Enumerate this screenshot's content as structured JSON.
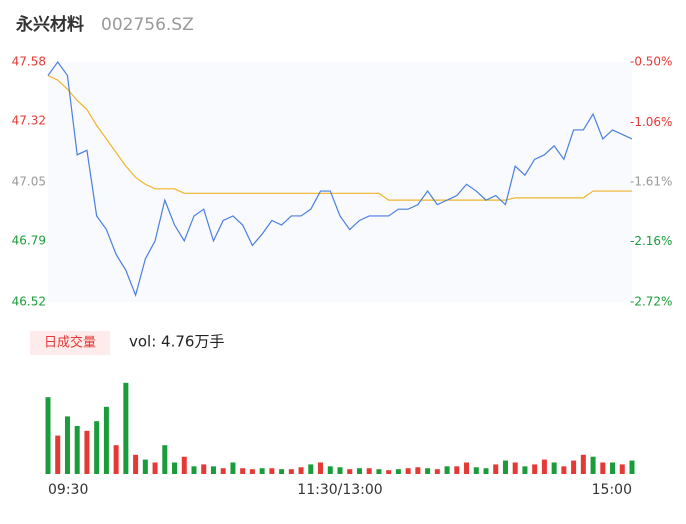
{
  "chart_data": [
    {
      "type": "line",
      "title": "永兴材料",
      "subtitle": "002756.SZ",
      "ylim": [
        46.52,
        47.58
      ],
      "yticks": [
        47.58,
        47.32,
        47.05,
        46.79,
        46.52
      ],
      "ytick_colors": [
        "#e53935",
        "#e53935",
        "#999999",
        "#1a9c3a",
        "#1a9c3a"
      ],
      "y2lim": [
        -2.72,
        -0.5
      ],
      "y2ticks": [
        {
          "value": -0.5,
          "label": "-0.50%"
        },
        {
          "value": -1.06,
          "label": "-1.06%"
        },
        {
          "value": -1.61,
          "label": "-1.61%"
        },
        {
          "value": -2.16,
          "label": "-2.16%"
        },
        {
          "value": -2.72,
          "label": "-2.72%"
        }
      ],
      "series": [
        {
          "color": "#4a7fe0",
          "values": [
            47.52,
            47.58,
            47.52,
            47.17,
            47.19,
            46.9,
            46.84,
            46.73,
            46.66,
            46.55,
            46.71,
            46.79,
            46.97,
            46.86,
            46.79,
            46.9,
            46.93,
            46.79,
            46.88,
            46.9,
            46.86,
            46.77,
            46.82,
            46.88,
            46.86,
            46.9,
            46.9,
            46.93,
            47.01,
            47.01,
            46.9,
            46.84,
            46.88,
            46.9,
            46.9,
            46.9,
            46.93,
            46.93,
            46.95,
            47.01,
            46.95,
            46.97,
            46.99,
            47.04,
            47.01,
            46.97,
            46.99,
            46.95,
            47.12,
            47.08,
            47.15,
            47.17,
            47.21,
            47.15,
            47.28,
            47.28,
            47.35,
            47.24,
            47.28,
            47.26,
            47.24
          ]
        },
        {
          "color": "#f0b429",
          "values": [
            47.52,
            47.5,
            47.46,
            47.41,
            47.37,
            47.3,
            47.24,
            47.18,
            47.12,
            47.07,
            47.04,
            47.02,
            47.02,
            47.02,
            47.0,
            47.0,
            47.0,
            47.0,
            47.0,
            47.0,
            47.0,
            47.0,
            47.0,
            47.0,
            47.0,
            47.0,
            47.0,
            47.0,
            47.0,
            47.0,
            47.0,
            47.0,
            47.0,
            47.0,
            47.0,
            46.97,
            46.97,
            46.97,
            46.97,
            46.97,
            46.97,
            46.97,
            46.97,
            46.97,
            46.97,
            46.97,
            46.97,
            46.97,
            46.98,
            46.98,
            46.98,
            46.98,
            46.98,
            46.98,
            46.98,
            46.98,
            47.01,
            47.01,
            47.01,
            47.01,
            47.01
          ]
        }
      ]
    },
    {
      "type": "bar",
      "label": "日成交量",
      "volume_label": "vol: 4.76万手",
      "categories": [
        "09:30",
        null,
        null,
        null,
        null,
        null,
        null,
        null,
        null,
        null,
        null,
        null,
        null,
        null,
        null,
        null,
        null,
        null,
        null,
        null,
        null,
        null,
        null,
        null,
        null,
        null,
        null,
        null,
        null,
        null,
        "11:30/13:00",
        null,
        null,
        null,
        null,
        null,
        null,
        null,
        null,
        null,
        null,
        null,
        null,
        null,
        null,
        null,
        null,
        null,
        null,
        null,
        null,
        null,
        null,
        null,
        null,
        null,
        null,
        null,
        null,
        null,
        "15:00"
      ],
      "ylim": [
        0,
        3000
      ],
      "series": [
        {
          "values": [
            2400,
            1200,
            1800,
            1500,
            1350,
            1650,
            2100,
            900,
            2850,
            600,
            450,
            360,
            900,
            360,
            540,
            240,
            300,
            240,
            180,
            360,
            180,
            150,
            180,
            180,
            150,
            150,
            210,
            300,
            360,
            240,
            210,
            150,
            180,
            180,
            150,
            120,
            150,
            180,
            210,
            180,
            150,
            240,
            240,
            360,
            210,
            180,
            300,
            420,
            360,
            240,
            300,
            450,
            360,
            240,
            420,
            600,
            540,
            360,
            360,
            300,
            420
          ],
          "colors": [
            "#1a9c3a",
            "#e53935",
            "#1a9c3a",
            "#1a9c3a",
            "#e53935",
            "#1a9c3a",
            "#1a9c3a",
            "#e53935",
            "#1a9c3a",
            "#e53935",
            "#1a9c3a",
            "#e53935",
            "#1a9c3a",
            "#1a9c3a",
            "#e53935",
            "#1a9c3a",
            "#e53935",
            "#1a9c3a",
            "#e53935",
            "#1a9c3a",
            "#e53935",
            "#e53935",
            "#1a9c3a",
            "#e53935",
            "#1a9c3a",
            "#e53935",
            "#e53935",
            "#1a9c3a",
            "#e53935",
            "#1a9c3a",
            "#1a9c3a",
            "#e53935",
            "#1a9c3a",
            "#e53935",
            "#1a9c3a",
            "#e53935",
            "#1a9c3a",
            "#e53935",
            "#e53935",
            "#1a9c3a",
            "#e53935",
            "#1a9c3a",
            "#e53935",
            "#e53935",
            "#1a9c3a",
            "#1a9c3a",
            "#e53935",
            "#1a9c3a",
            "#e53935",
            "#1a9c3a",
            "#e53935",
            "#e53935",
            "#1a9c3a",
            "#e53935",
            "#e53935",
            "#e53935",
            "#1a9c3a",
            "#e53935",
            "#1a9c3a",
            "#e53935",
            "#1a9c3a"
          ]
        }
      ]
    }
  ]
}
